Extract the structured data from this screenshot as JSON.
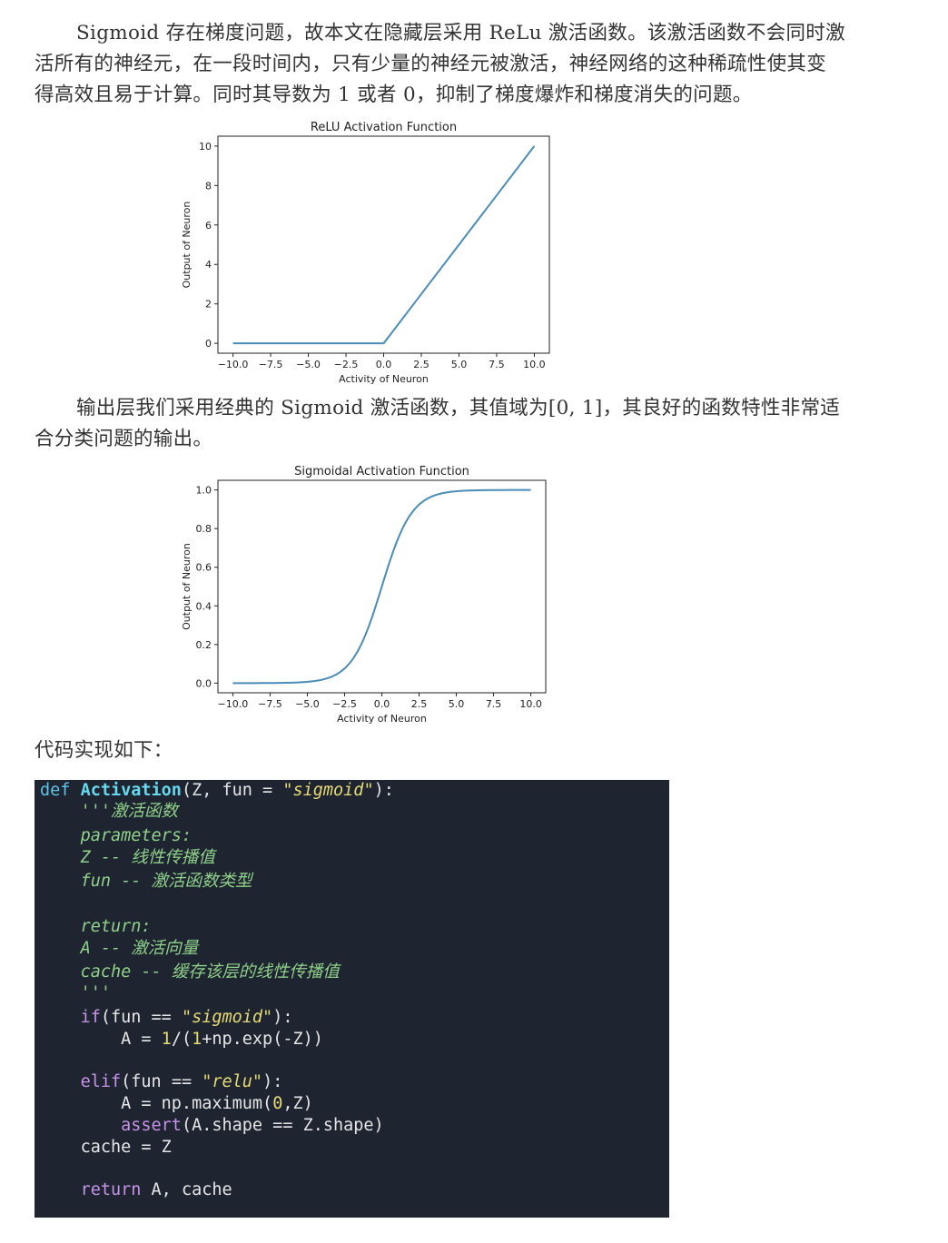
{
  "paragraphs": {
    "p1": [
      "Sigmoid 存在梯度问题，故本文在隐藏层采用 ReLu 激活函数。该激活函数不会同时激",
      "活所有的神经元，在一段时间内，只有少量的神经元被激活，神经网络的这种稀疏性使其变",
      "得高效且易于计算。同时其导数为 1 或者 0，抑制了梯度爆炸和梯度消失的问题。"
    ],
    "p2": [
      "输出层我们采用经典的 Sigmoid 激活函数，其值域为[0, 1]，其良好的函数特性非常适",
      "合分类问题的输出。"
    ],
    "p3": "代码实现如下："
  },
  "chart_data": [
    {
      "type": "line",
      "title": "ReLU Activation Function",
      "xlabel": "Activity of Neuron",
      "ylabel": "Output of Neuron",
      "xlim": [
        -10,
        10
      ],
      "ylim": [
        0,
        10
      ],
      "xticks": [
        "−10.0",
        "−7.5",
        "−5.0",
        "−2.5",
        "0.0",
        "2.5",
        "5.0",
        "7.5",
        "10.0"
      ],
      "yticks": [
        "0",
        "2",
        "4",
        "6",
        "8",
        "10"
      ],
      "grid": false,
      "series": [
        {
          "x": [
            -10,
            -2.5,
            0,
            0.1,
            2.5,
            5,
            7.5,
            10
          ],
          "y": [
            0,
            0,
            0,
            0.1,
            2.5,
            5,
            7.5,
            10
          ],
          "color": "#4a8bb8"
        }
      ]
    },
    {
      "type": "line",
      "title": "Sigmoidal Activation Function",
      "xlabel": "Activity of Neuron",
      "ylabel": "Output of Neuron",
      "xlim": [
        -10,
        10
      ],
      "ylim": [
        0,
        1
      ],
      "xticks": [
        "−10.0",
        "−7.5",
        "−5.0",
        "−2.5",
        "0.0",
        "2.5",
        "5.0",
        "7.5",
        "10.0"
      ],
      "yticks": [
        "0.0",
        "0.2",
        "0.4",
        "0.6",
        "0.8",
        "1.0"
      ],
      "grid": false,
      "series": [
        {
          "x": [
            -10,
            -8,
            -6,
            -5,
            -4,
            -3,
            -2,
            -1.5,
            -1,
            -0.5,
            0,
            0.5,
            1,
            1.5,
            2,
            3,
            4,
            5,
            6,
            8,
            10
          ],
          "y": [
            4.54e-05,
            0.000335,
            0.00247,
            0.00669,
            0.018,
            0.0474,
            0.119,
            0.182,
            0.269,
            0.378,
            0.5,
            0.622,
            0.731,
            0.818,
            0.881,
            0.953,
            0.982,
            0.993,
            0.998,
            0.9997,
            1.0
          ],
          "color": "#4a8bb8"
        }
      ]
    }
  ],
  "code": {
    "line1": {
      "kw": "def",
      "name": "Activation",
      "args": "(Z, fun = ",
      "str": "\"sigmoid\"",
      "end": "):"
    },
    "doc_open": "'''激活函数",
    "doc_params": "parameters:",
    "doc_z": "Z -- 线性传播值",
    "doc_fun": "fun -- 激活函数类型",
    "doc_return": "return:",
    "doc_a": "A -- 激活向量",
    "doc_cache": "cache -- 缓存该层的线性传播值",
    "doc_close": "'''",
    "if_kw": "if",
    "if_mid": "(fun == ",
    "if_str": "\"sigmoid\"",
    "if_end": "):",
    "a1_pre": "A = ",
    "a1_one": "1",
    "a1_mid": "/(",
    "a1_one2": "1",
    "a1_rest": "+np.exp(-Z))",
    "elif_kw": "elif",
    "elif_mid": "(fun == ",
    "elif_str": "\"relu\"",
    "elif_end": "):",
    "a2_pre": "A = np.maximum(",
    "a2_zero": "0",
    "a2_end": ",Z)",
    "assert_kw": "assert",
    "assert_rest": "(A.shape == Z.shape)",
    "cache_line": "cache = Z",
    "return_kw": "return",
    "return_rest": " A, cache"
  }
}
